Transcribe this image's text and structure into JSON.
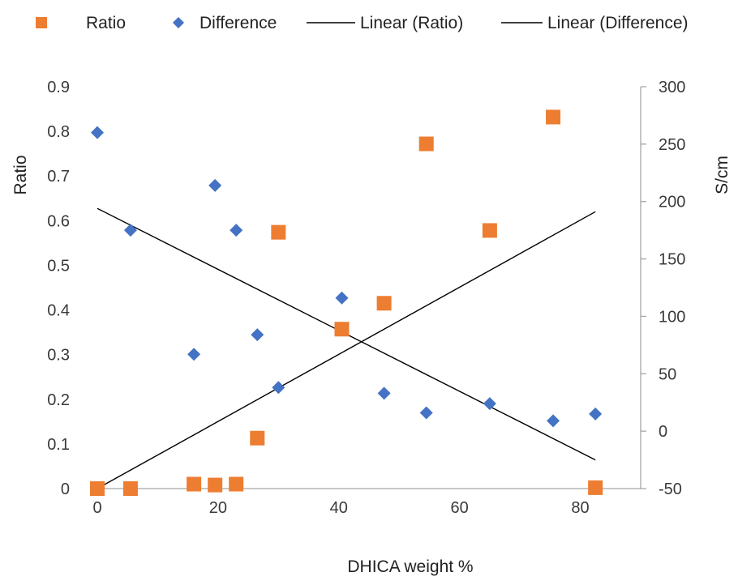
{
  "chart_data": {
    "type": "scatter",
    "xlabel": "DHICA weight %",
    "ylabel": "Ratio",
    "y2label": "S/cm",
    "xlim": [
      0,
      90
    ],
    "ylim": [
      0,
      0.9
    ],
    "y2lim": [
      -50,
      300
    ],
    "x_ticks": [
      "0",
      "20",
      "40",
      "60",
      "80"
    ],
    "y_ticks": [
      "0",
      "0.1",
      "0.2",
      "0.3",
      "0.4",
      "0.5",
      "0.6",
      "0.7",
      "0.8",
      "0.9"
    ],
    "y2_ticks": [
      "-50",
      "0",
      "50",
      "100",
      "150",
      "200",
      "250",
      "300"
    ],
    "grid": false,
    "legend_position": "top",
    "series": [
      {
        "name": "Ratio",
        "axis": "left",
        "marker": "square",
        "color": "#ED7D31",
        "points": [
          [
            0,
            0.0
          ],
          [
            5.5,
            0.0
          ],
          [
            16,
            0.01
          ],
          [
            19.5,
            0.008
          ],
          [
            23,
            0.01
          ],
          [
            26.5,
            0.113
          ],
          [
            30,
            0.574
          ],
          [
            40.5,
            0.357
          ],
          [
            47.5,
            0.415
          ],
          [
            54.5,
            0.772
          ],
          [
            65,
            0.578
          ],
          [
            75.5,
            0.832
          ],
          [
            82.5,
            0.002
          ]
        ]
      },
      {
        "name": "Difference",
        "axis": "right",
        "marker": "diamond",
        "color": "#4472C4",
        "points": [
          [
            0,
            260
          ],
          [
            5.5,
            175
          ],
          [
            16,
            67
          ],
          [
            19.5,
            214
          ],
          [
            23,
            175
          ],
          [
            26.5,
            84
          ],
          [
            30,
            38
          ],
          [
            40.5,
            116
          ],
          [
            47.5,
            33
          ],
          [
            54.5,
            16
          ],
          [
            65,
            24
          ],
          [
            75.5,
            9
          ],
          [
            82.5,
            15
          ]
        ]
      },
      {
        "name": "Linear (Ratio)",
        "axis": "left",
        "type": "trendline",
        "color": "#000000",
        "points": [
          [
            0,
            0.0
          ],
          [
            82.5,
            0.62
          ]
        ]
      },
      {
        "name": "Linear (Difference)",
        "axis": "right",
        "type": "trendline",
        "color": "#000000",
        "points": [
          [
            0,
            194
          ],
          [
            82.5,
            -25
          ]
        ]
      }
    ]
  }
}
